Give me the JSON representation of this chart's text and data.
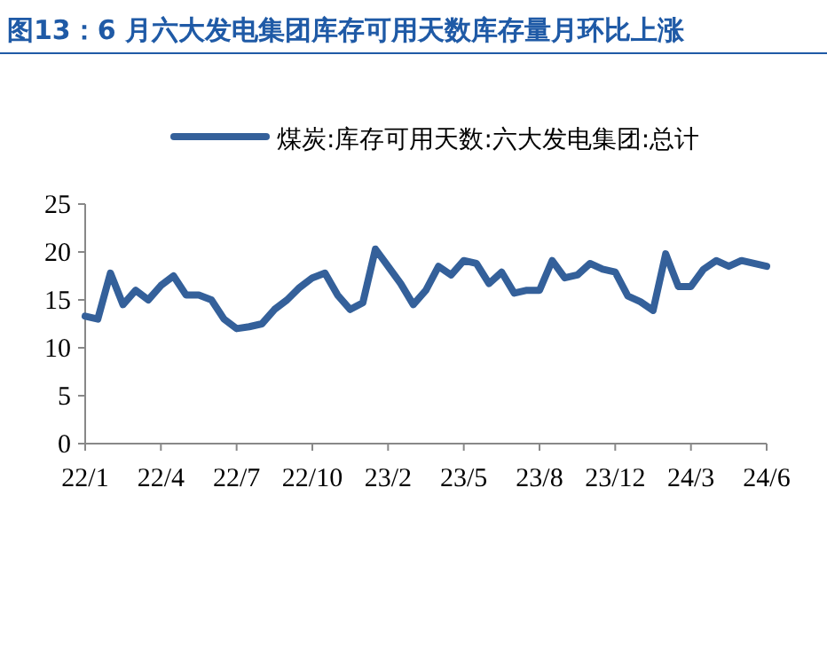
{
  "chart_data": {
    "type": "line",
    "title": "图13：6 月六大发电集团库存可用天数库存量月环比上涨",
    "categories": [
      "22/1",
      null,
      null,
      null,
      null,
      null,
      "22/4",
      null,
      null,
      null,
      null,
      null,
      "22/7",
      null,
      null,
      null,
      null,
      null,
      "22/10",
      null,
      null,
      null,
      null,
      null,
      "23/2",
      null,
      null,
      null,
      null,
      null,
      "23/5",
      null,
      null,
      null,
      null,
      null,
      "23/8",
      null,
      null,
      null,
      null,
      null,
      "23/12",
      null,
      null,
      null,
      null,
      null,
      "24/3",
      null,
      null,
      null,
      null,
      null,
      "24/6"
    ],
    "series": [
      {
        "name": "煤炭:库存可用天数:六大发电集团:总计",
        "color": "#34609a",
        "values": [
          13.3,
          13,
          17.8,
          14.5,
          16,
          15,
          16.5,
          17.5,
          15.5,
          15.5,
          15,
          13,
          12,
          12.2,
          12.5,
          14,
          15,
          16.3,
          17.3,
          17.8,
          15.5,
          14,
          14.7,
          20.3,
          18.5,
          16.7,
          14.5,
          16,
          18.5,
          17.6,
          19.1,
          18.8,
          16.7,
          17.9,
          15.7,
          16,
          16,
          19.1,
          17.3,
          17.6,
          18.8,
          18.2,
          17.9,
          15.4,
          14.8,
          13.9,
          19.8,
          16.4,
          16.4,
          18.2,
          19.1,
          18.5,
          19.1,
          18.8,
          18.5
        ]
      }
    ],
    "ylim": [
      0,
      25
    ],
    "yticks": [
      0,
      5,
      10,
      15,
      20,
      25
    ],
    "grid": false,
    "legend": "top",
    "marker": "none",
    "line_style": "solid"
  }
}
